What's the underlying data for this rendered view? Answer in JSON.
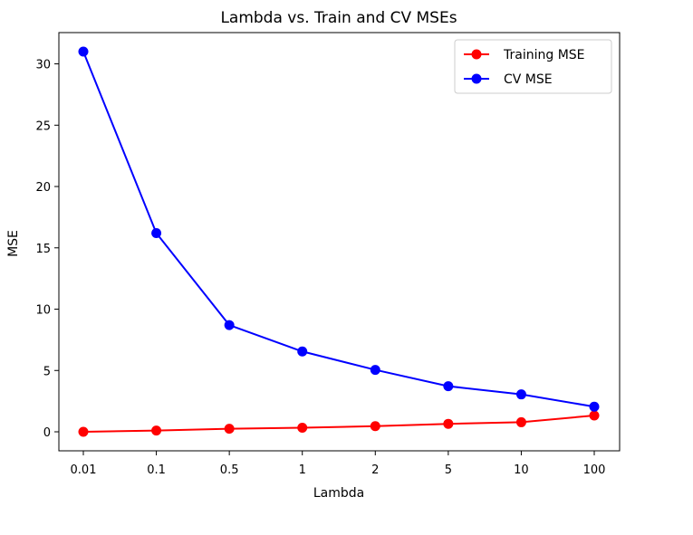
{
  "chart_data": {
    "type": "line",
    "title": "Lambda vs. Train and CV MSEs",
    "xlabel": "Lambda",
    "ylabel": "MSE",
    "categories": [
      "0.01",
      "0.1",
      "0.5",
      "1",
      "2",
      "5",
      "10",
      "100"
    ],
    "series": [
      {
        "name": "Training MSE",
        "color": "#ff0000",
        "values": [
          0.0,
          0.1,
          0.25,
          0.33,
          0.46,
          0.65,
          0.78,
          1.33
        ]
      },
      {
        "name": "CV MSE",
        "color": "#0000ff",
        "values": [
          31.0,
          16.2,
          8.7,
          6.55,
          5.05,
          3.72,
          3.05,
          2.05
        ]
      }
    ],
    "ylim": [
      -1.55,
      32.55
    ],
    "yticks": [
      "0",
      "5",
      "10",
      "15",
      "20",
      "25",
      "30"
    ],
    "grid": false,
    "legend_position": "top-right",
    "marker": "circle"
  }
}
